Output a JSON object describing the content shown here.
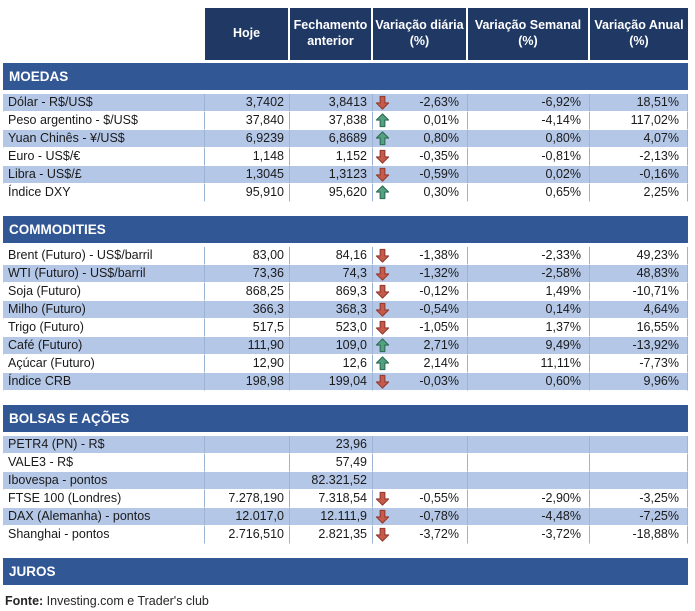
{
  "colors": {
    "header_bg": "#1F3864",
    "section_bg": "#325795",
    "band": "#B4C7E7",
    "border": "#9DB3D4",
    "arrow_up_fill": "#54A081",
    "arrow_up_stroke": "#2F6F55",
    "arrow_down_fill": "#C75B4B",
    "arrow_down_stroke": "#943C30"
  },
  "table": {
    "columns": [
      "",
      "Hoje",
      "Fechamento anterior",
      "Variação diária (%)",
      "Variação Semanal (%)",
      "Variação Anual (%)"
    ],
    "sections": [
      {
        "title": "MOEDAS",
        "rows": [
          {
            "label": "Dólar - R$/US$",
            "hoje": "3,7402",
            "fechamento": "3,8413",
            "arrow": "down",
            "diaria": "-2,63%",
            "semanal": "-6,92%",
            "anual": "18,51%"
          },
          {
            "label": "Peso argentino - $/US$",
            "hoje": "37,840",
            "fechamento": "37,838",
            "arrow": "up",
            "diaria": "0,01%",
            "semanal": "-4,14%",
            "anual": "117,02%"
          },
          {
            "label": "Yuan Chinês - ¥/US$",
            "hoje": "6,9239",
            "fechamento": "6,8689",
            "arrow": "up",
            "diaria": "0,80%",
            "semanal": "0,80%",
            "anual": "4,07%"
          },
          {
            "label": "Euro - US$/€",
            "hoje": "1,148",
            "fechamento": "1,152",
            "arrow": "down",
            "diaria": "-0,35%",
            "semanal": "-0,81%",
            "anual": "-2,13%"
          },
          {
            "label": "Libra - US$/£",
            "hoje": "1,3045",
            "fechamento": "1,3123",
            "arrow": "down",
            "diaria": "-0,59%",
            "semanal": "0,02%",
            "anual": "-0,16%"
          },
          {
            "label": "Índice DXY",
            "hoje": "95,910",
            "fechamento": "95,620",
            "arrow": "up",
            "diaria": "0,30%",
            "semanal": "0,65%",
            "anual": "2,25%"
          }
        ]
      },
      {
        "title": "COMMODITIES",
        "rows": [
          {
            "label": "Brent (Futuro) - US$/barril",
            "hoje": "83,00",
            "fechamento": "84,16",
            "arrow": "down",
            "diaria": "-1,38%",
            "semanal": "-2,33%",
            "anual": "49,23%"
          },
          {
            "label": "WTI (Futuro) - US$/barril",
            "hoje": "73,36",
            "fechamento": "74,3",
            "arrow": "down",
            "diaria": "-1,32%",
            "semanal": "-2,58%",
            "anual": "48,83%"
          },
          {
            "label": "Soja (Futuro)",
            "hoje": "868,25",
            "fechamento": "869,3",
            "arrow": "down",
            "diaria": "-0,12%",
            "semanal": "1,49%",
            "anual": "-10,71%"
          },
          {
            "label": "Milho (Futuro)",
            "hoje": "366,3",
            "fechamento": "368,3",
            "arrow": "down",
            "diaria": "-0,54%",
            "semanal": "0,14%",
            "anual": "4,64%"
          },
          {
            "label": "Trigo (Futuro)",
            "hoje": "517,5",
            "fechamento": "523,0",
            "arrow": "down",
            "diaria": "-1,05%",
            "semanal": "1,37%",
            "anual": "16,55%"
          },
          {
            "label": "Café (Futuro)",
            "hoje": "111,90",
            "fechamento": "109,0",
            "arrow": "up",
            "diaria": "2,71%",
            "semanal": "9,49%",
            "anual": "-13,92%"
          },
          {
            "label": "Açúcar (Futuro)",
            "hoje": "12,90",
            "fechamento": "12,6",
            "arrow": "up",
            "diaria": "2,14%",
            "semanal": "11,11%",
            "anual": "-7,73%"
          },
          {
            "label": "Índice CRB",
            "hoje": "198,98",
            "fechamento": "199,04",
            "arrow": "down",
            "diaria": "-0,03%",
            "semanal": "0,60%",
            "anual": "9,96%"
          }
        ]
      },
      {
        "title": "BOLSAS E AÇÕES",
        "rows": [
          {
            "label": "PETR4 (PN) - R$",
            "hoje": "",
            "fechamento": "23,96",
            "arrow": "",
            "diaria": "",
            "semanal": "",
            "anual": ""
          },
          {
            "label": "VALE3 - R$",
            "hoje": "",
            "fechamento": "57,49",
            "arrow": "",
            "diaria": "",
            "semanal": "",
            "anual": ""
          },
          {
            "label": "Ibovespa - pontos",
            "hoje": "",
            "fechamento": "82.321,52",
            "arrow": "",
            "diaria": "",
            "semanal": "",
            "anual": ""
          },
          {
            "label": "FTSE 100 (Londres)",
            "hoje": "7.278,190",
            "fechamento": "7.318,54",
            "arrow": "down",
            "diaria": "-0,55%",
            "semanal": "-2,90%",
            "anual": "-3,25%"
          },
          {
            "label": "DAX (Alemanha) - pontos",
            "hoje": "12.017,0",
            "fechamento": "12.111,9",
            "arrow": "down",
            "diaria": "-0,78%",
            "semanal": "-4,48%",
            "anual": "-7,25%"
          },
          {
            "label": "Shanghai - pontos",
            "hoje": "2.716,510",
            "fechamento": "2.821,35",
            "arrow": "down",
            "diaria": "-3,72%",
            "semanal": "-3,72%",
            "anual": "-18,88%"
          }
        ]
      },
      {
        "title": "JUROS",
        "rows": []
      }
    ]
  },
  "footer": {
    "label": "Fonte:",
    "text": " Investing.com e Trader's club"
  }
}
